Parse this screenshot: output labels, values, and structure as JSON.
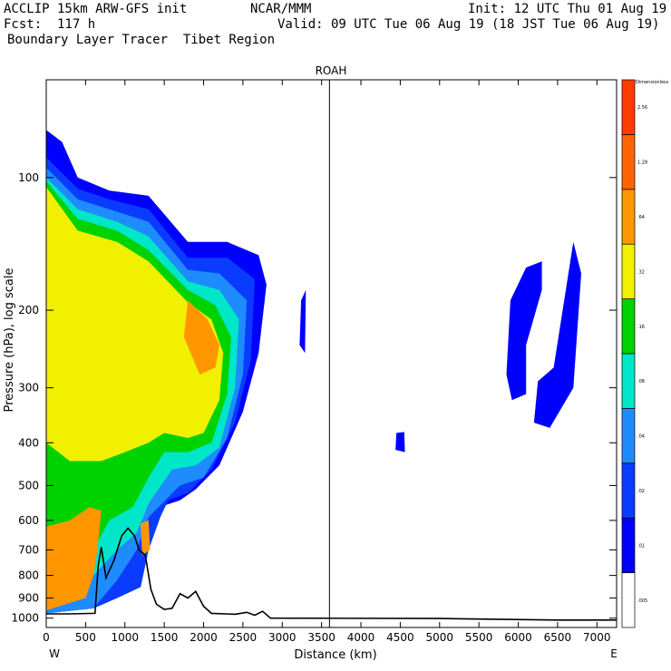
{
  "header": {
    "model": "ACCLIP 15km ARW-GFS init",
    "org": "NCAR/MMM",
    "init": "Init: 12 UTC Thu 01 Aug 19",
    "fcst": "Fcst:  117 h",
    "valid": "Valid: 09 UTC Tue 06 Aug 19 (18 JST Tue 06 Aug 19)",
    "field": "Boundary Layer Tracer  Tibet Region"
  },
  "chart_data": {
    "type": "heatmap",
    "title": "ROAH",
    "xlabel": "Distance (km)",
    "ylabel": "Pressure (hPa), log scale",
    "x_label_left": "W",
    "x_label_right": "E",
    "xlim": [
      0,
      7250
    ],
    "ylim": [
      1050,
      60
    ],
    "x_ticks": [
      0,
      500,
      1000,
      1500,
      2000,
      2500,
      3000,
      3500,
      4000,
      4500,
      5000,
      5500,
      6000,
      6500,
      7000
    ],
    "y_ticks": [
      100,
      200,
      300,
      400,
      500,
      600,
      700,
      800,
      900,
      1000
    ],
    "vertical_marker_km": 3600,
    "colorbar": {
      "unit_label": "Dimensionless",
      "levels": [
        ".005",
        ".01",
        ".02",
        ".04",
        ".08",
        ".16",
        ".32",
        ".64",
        "1.28",
        "2.56"
      ],
      "colors": [
        "#ffffff",
        "#0000ff",
        "#0a3cff",
        "#1e8cff",
        "#00e6c8",
        "#00d200",
        "#f0f000",
        "#ff9600",
        "#ff6400",
        "#ff3c00"
      ]
    },
    "terrain": [
      {
        "x": 0,
        "p": 978
      },
      {
        "x": 300,
        "p": 978
      },
      {
        "x": 620,
        "p": 975
      },
      {
        "x": 660,
        "p": 760
      },
      {
        "x": 700,
        "p": 690
      },
      {
        "x": 760,
        "p": 810
      },
      {
        "x": 860,
        "p": 740
      },
      {
        "x": 960,
        "p": 650
      },
      {
        "x": 1040,
        "p": 625
      },
      {
        "x": 1120,
        "p": 650
      },
      {
        "x": 1180,
        "p": 700
      },
      {
        "x": 1260,
        "p": 720
      },
      {
        "x": 1330,
        "p": 860
      },
      {
        "x": 1400,
        "p": 930
      },
      {
        "x": 1500,
        "p": 955
      },
      {
        "x": 1600,
        "p": 950
      },
      {
        "x": 1700,
        "p": 880
      },
      {
        "x": 1800,
        "p": 900
      },
      {
        "x": 1900,
        "p": 870
      },
      {
        "x": 2000,
        "p": 940
      },
      {
        "x": 2100,
        "p": 975
      },
      {
        "x": 2400,
        "p": 980
      },
      {
        "x": 2550,
        "p": 970
      },
      {
        "x": 2650,
        "p": 985
      },
      {
        "x": 2750,
        "p": 965
      },
      {
        "x": 2850,
        "p": 1000
      },
      {
        "x": 5000,
        "p": 1002
      },
      {
        "x": 6500,
        "p": 1010
      },
      {
        "x": 7250,
        "p": 1010
      }
    ],
    "contours": [
      {
        "level": ".01",
        "color": "#0000ff",
        "points": [
          [
            0,
            78
          ],
          [
            200,
            83
          ],
          [
            400,
            100
          ],
          [
            800,
            107
          ],
          [
            1300,
            110
          ],
          [
            1800,
            140
          ],
          [
            2300,
            140
          ],
          [
            2700,
            150
          ],
          [
            2800,
            175
          ],
          [
            2700,
            250
          ],
          [
            2500,
            340
          ],
          [
            2200,
            450
          ],
          [
            1900,
            510
          ],
          [
            1700,
            540
          ],
          [
            1500,
            555
          ],
          [
            1300,
            700
          ],
          [
            1200,
            850
          ],
          [
            900,
            900
          ],
          [
            600,
            950
          ],
          [
            0,
            975
          ]
        ]
      },
      {
        "level": ".01",
        "color": "#0000ff",
        "points": [
          [
            3240,
            190
          ],
          [
            3300,
            180
          ],
          [
            3290,
            250
          ],
          [
            3220,
            240
          ]
        ]
      },
      {
        "level": ".01",
        "color": "#0000ff",
        "points": [
          [
            4450,
            380
          ],
          [
            4550,
            378
          ],
          [
            4560,
            420
          ],
          [
            4440,
            415
          ]
        ]
      },
      {
        "level": ".01",
        "color": "#0000ff",
        "points": [
          [
            5850,
            280
          ],
          [
            5900,
            190
          ],
          [
            6100,
            160
          ],
          [
            6300,
            155
          ],
          [
            6300,
            180
          ],
          [
            6100,
            240
          ],
          [
            6100,
            310
          ],
          [
            5920,
            320
          ]
        ]
      },
      {
        "level": ".01",
        "color": "#0000ff",
        "points": [
          [
            6250,
            290
          ],
          [
            6450,
            270
          ],
          [
            6700,
            140
          ],
          [
            6800,
            165
          ],
          [
            6700,
            300
          ],
          [
            6400,
            370
          ],
          [
            6200,
            360
          ]
        ]
      },
      {
        "level": ".02",
        "color": "#0a3cff",
        "points": [
          [
            0,
            90
          ],
          [
            400,
            106
          ],
          [
            800,
            112
          ],
          [
            1300,
            118
          ],
          [
            1800,
            152
          ],
          [
            2300,
            152
          ],
          [
            2650,
            170
          ],
          [
            2600,
            260
          ],
          [
            2400,
            360
          ],
          [
            2100,
            460
          ],
          [
            1800,
            520
          ],
          [
            1550,
            540
          ],
          [
            1450,
            590
          ],
          [
            1300,
            700
          ],
          [
            1200,
            850
          ],
          [
            900,
            900
          ],
          [
            600,
            950
          ],
          [
            0,
            975
          ]
        ]
      },
      {
        "level": ".04",
        "color": "#1e8cff",
        "points": [
          [
            0,
            95
          ],
          [
            400,
            112
          ],
          [
            800,
            118
          ],
          [
            1300,
            126
          ],
          [
            1800,
            162
          ],
          [
            2200,
            165
          ],
          [
            2550,
            190
          ],
          [
            2500,
            280
          ],
          [
            2300,
            390
          ],
          [
            2000,
            480
          ],
          [
            1700,
            500
          ],
          [
            1300,
            590
          ],
          [
            1150,
            700
          ],
          [
            900,
            820
          ],
          [
            600,
            950
          ],
          [
            0,
            975
          ]
        ]
      },
      {
        "level": ".08",
        "color": "#00e6c8",
        "points": [
          [
            0,
            100
          ],
          [
            400,
            118
          ],
          [
            900,
            126
          ],
          [
            1300,
            136
          ],
          [
            1800,
            172
          ],
          [
            2200,
            180
          ],
          [
            2450,
            210
          ],
          [
            2400,
            300
          ],
          [
            2200,
            410
          ],
          [
            1900,
            450
          ],
          [
            1600,
            460
          ],
          [
            1300,
            550
          ],
          [
            1150,
            640
          ],
          [
            900,
            700
          ],
          [
            600,
            800
          ],
          [
            0,
            830
          ]
        ]
      },
      {
        "level": ".16",
        "color": "#00d200",
        "points": [
          [
            0,
            102
          ],
          [
            400,
            124
          ],
          [
            900,
            132
          ],
          [
            1300,
            146
          ],
          [
            1800,
            180
          ],
          [
            2150,
            195
          ],
          [
            2350,
            230
          ],
          [
            2300,
            310
          ],
          [
            2100,
            400
          ],
          [
            1800,
            420
          ],
          [
            1500,
            420
          ],
          [
            1300,
            480
          ],
          [
            1100,
            560
          ],
          [
            800,
            600
          ],
          [
            600,
            700
          ],
          [
            0,
            700
          ]
        ]
      },
      {
        "level": ".32",
        "color": "#f0f000",
        "points": [
          [
            0,
            105
          ],
          [
            400,
            132
          ],
          [
            900,
            140
          ],
          [
            1300,
            155
          ],
          [
            1800,
            192
          ],
          [
            2100,
            210
          ],
          [
            2250,
            250
          ],
          [
            2200,
            320
          ],
          [
            2000,
            380
          ],
          [
            1800,
            390
          ],
          [
            1500,
            380
          ],
          [
            1300,
            400
          ],
          [
            1000,
            420
          ],
          [
            700,
            440
          ],
          [
            300,
            440
          ],
          [
            0,
            400
          ]
        ]
      },
      {
        "level": ".64",
        "color": "#ff9600",
        "points": [
          [
            1800,
            190
          ],
          [
            2050,
            210
          ],
          [
            2200,
            240
          ],
          [
            2150,
            270
          ],
          [
            1950,
            280
          ],
          [
            1750,
            230
          ]
        ]
      },
      {
        "level": ".64",
        "color": "#ff9600",
        "points": [
          [
            0,
            620
          ],
          [
            300,
            600
          ],
          [
            550,
            560
          ],
          [
            700,
            570
          ],
          [
            650,
            700
          ],
          [
            600,
            800
          ],
          [
            500,
            900
          ],
          [
            0,
            960
          ]
        ]
      },
      {
        "level": ".64",
        "color": "#ff9600",
        "points": [
          [
            1200,
            610
          ],
          [
            1300,
            600
          ],
          [
            1320,
            700
          ],
          [
            1220,
            720
          ]
        ]
      }
    ]
  }
}
